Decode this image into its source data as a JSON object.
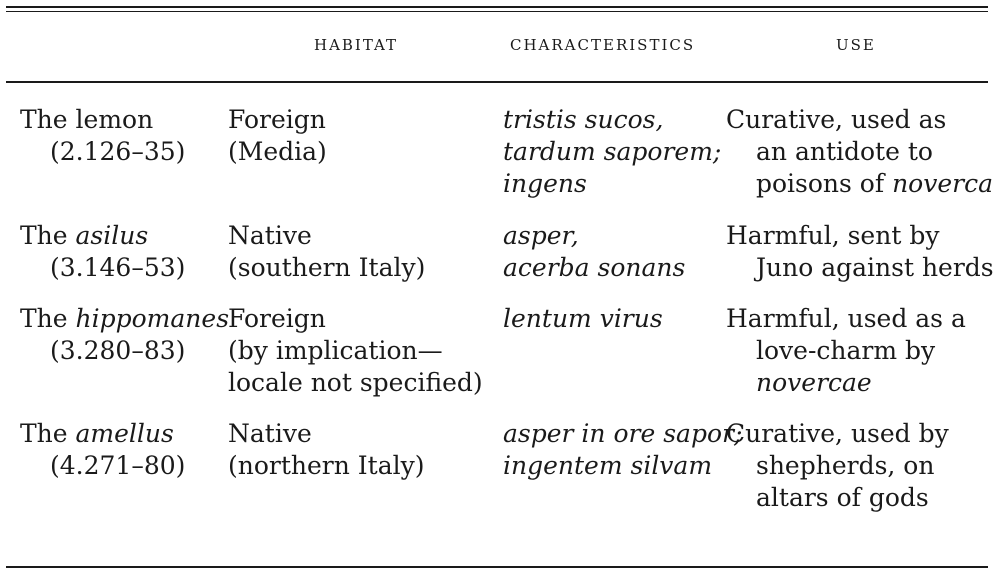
{
  "table": {
    "headers": {
      "habitat": "HABITAT",
      "characteristics": "CHARACTERISTICS",
      "use": "USE"
    },
    "rows": [
      {
        "name": {
          "prefix": "The ",
          "term": "lemon",
          "term_italic": false
        },
        "ref": "(2.126–35)",
        "habitat": [
          "Foreign",
          "(Media)"
        ],
        "characteristics": [
          "tristis sucos,",
          "tardum saporem;",
          "ingens"
        ],
        "use": {
          "l1": "Curative, used as",
          "l2": "an antidote to",
          "l3a": "poisons of ",
          "l3b": "novercae"
        }
      },
      {
        "name": {
          "prefix": "The ",
          "term": "asilus",
          "term_italic": true
        },
        "ref": "(3.146–53)",
        "habitat": [
          "Native",
          "(southern Italy)"
        ],
        "characteristics": [
          "asper,",
          "acerba sonans"
        ],
        "use": {
          "l1": "Harmful, sent by",
          "l2": "Juno against herds"
        }
      },
      {
        "name": {
          "prefix": "The ",
          "term": "hippomanes",
          "term_italic": true
        },
        "ref": "(3.280–83)",
        "habitat": [
          "Foreign",
          "(by implication—",
          "locale not specified)"
        ],
        "characteristics": [
          "lentum virus"
        ],
        "use": {
          "l1": "Harmful, used as a",
          "l2": "love-charm by",
          "l3": "novercae"
        }
      },
      {
        "name": {
          "prefix": "The ",
          "term": "amellus",
          "term_italic": true
        },
        "ref": "(4.271–80)",
        "habitat": [
          "Native",
          "(northern Italy)"
        ],
        "characteristics": [
          "asper in ore sapor;",
          "ingentem silvam"
        ],
        "use": {
          "l1": "Curative, used by",
          "l2": "shepherds, on",
          "l3": "altars of gods"
        }
      }
    ]
  }
}
